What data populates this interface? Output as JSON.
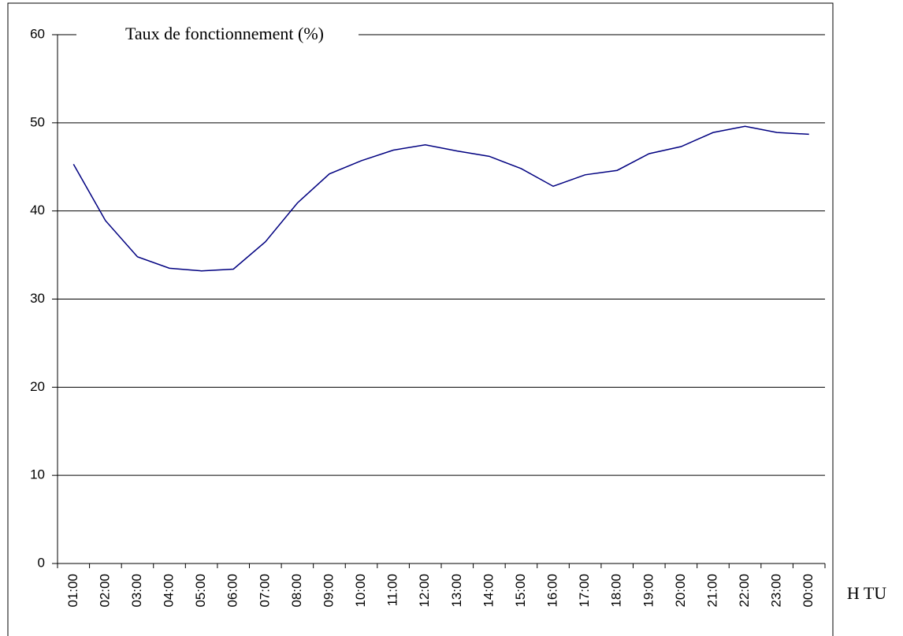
{
  "chart_data": {
    "type": "line",
    "y_label": "Taux de fonctionnement (%)",
    "x_label": "H TU",
    "categories": [
      "01:00",
      "02:00",
      "03:00",
      "04:00",
      "05:00",
      "06:00",
      "07:00",
      "08:00",
      "09:00",
      "10:00",
      "11:00",
      "12:00",
      "13:00",
      "14:00",
      "15:00",
      "16:00",
      "17:00",
      "18:00",
      "19:00",
      "20:00",
      "21:00",
      "22:00",
      "23:00",
      "00:00"
    ],
    "values": [
      45.3,
      38.9,
      34.8,
      33.5,
      33.2,
      33.4,
      36.5,
      40.9,
      44.2,
      45.7,
      46.9,
      47.5,
      46.8,
      46.2,
      44.8,
      42.8,
      44.1,
      44.6,
      46.5,
      47.3,
      48.9,
      49.6,
      48.9,
      48.7
    ],
    "color": "#000080",
    "ylim": [
      0,
      60
    ],
    "yticks": [
      0,
      10,
      20,
      30,
      40,
      50,
      60
    ],
    "grid": true
  }
}
